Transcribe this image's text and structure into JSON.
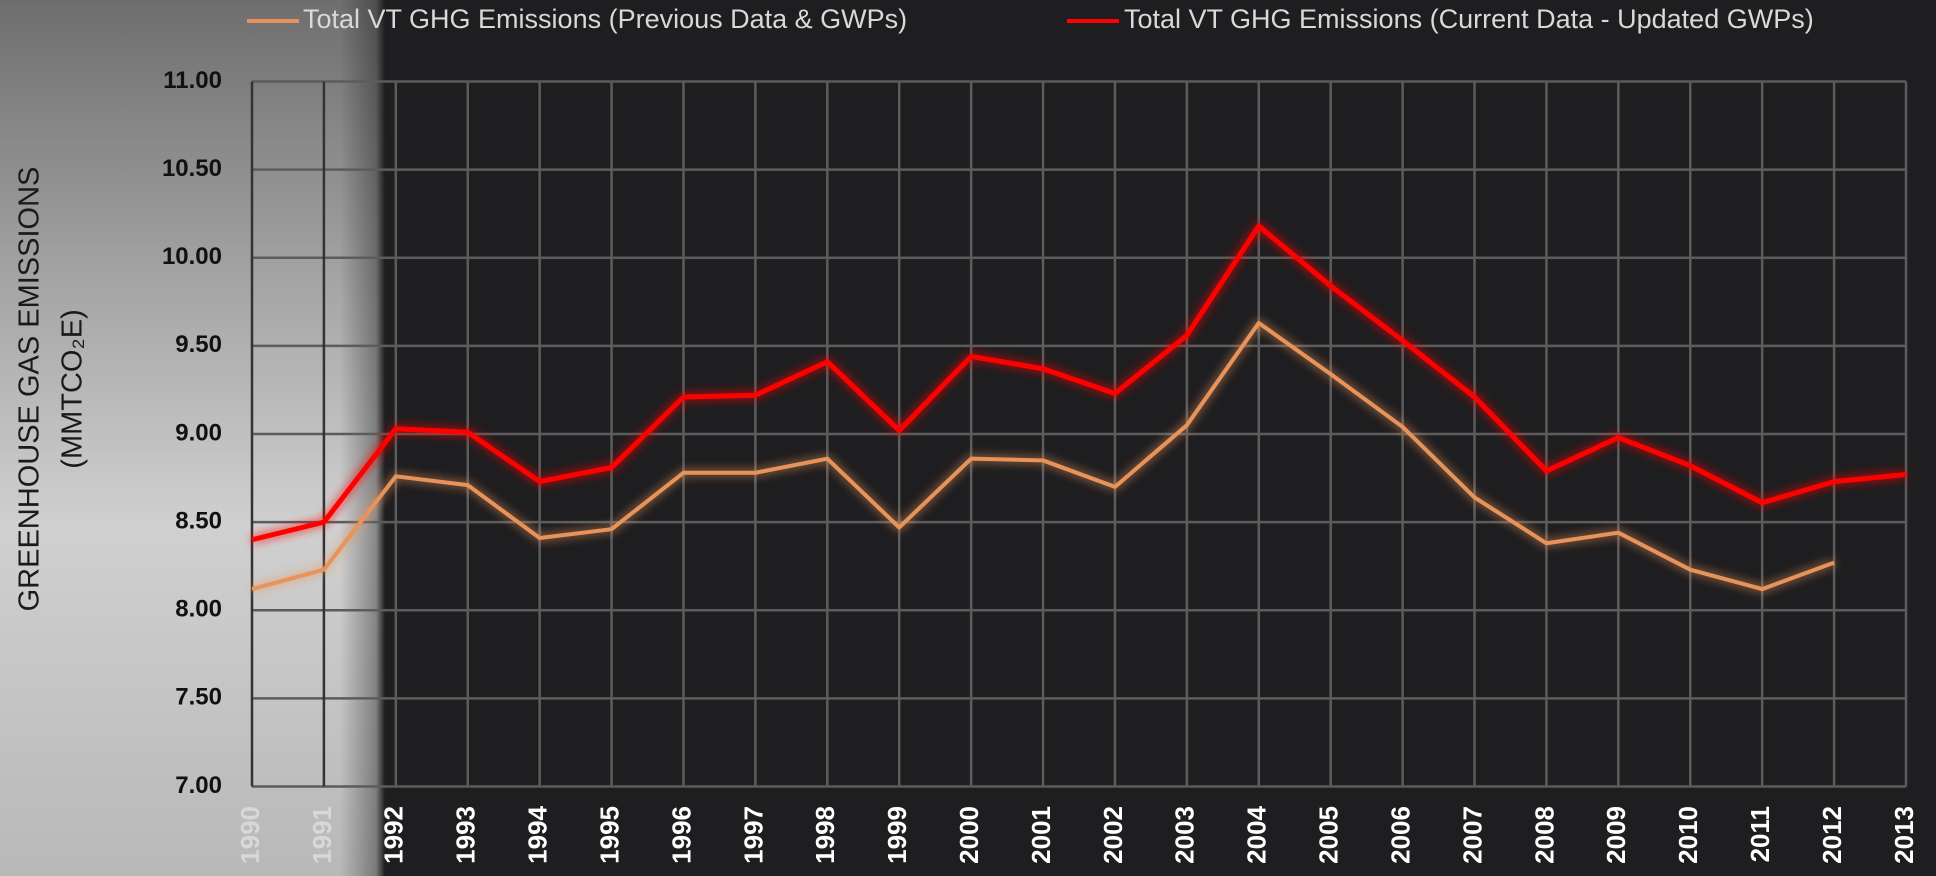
{
  "chart_data": {
    "type": "line",
    "y_label_lines": [
      "GREENHOUSE GAS EMISSIONS",
      "(MMTCO₂E)"
    ],
    "categories": [
      "1990",
      "1991",
      "1992",
      "1993",
      "1994",
      "1995",
      "1996",
      "1997",
      "1998",
      "1999",
      "2000",
      "2001",
      "2002",
      "2003",
      "2004",
      "2005",
      "2006",
      "2007",
      "2008",
      "2009",
      "2010",
      "2011",
      "2012",
      "2013"
    ],
    "series": [
      {
        "name": "Total VT GHG Emissions (Previous Data & GWPs)",
        "color": "#e8935a",
        "values": [
          8.12,
          8.23,
          8.76,
          8.71,
          8.41,
          8.46,
          8.78,
          8.78,
          8.86,
          8.47,
          8.86,
          8.85,
          8.7,
          9.05,
          9.63,
          9.34,
          9.04,
          8.64,
          8.38,
          8.44,
          8.23,
          8.12,
          8.27,
          null
        ]
      },
      {
        "name": "Total VT GHG Emissions (Current Data - Updated GWPs)",
        "color": "#ff0000",
        "values": [
          8.4,
          8.5,
          9.03,
          9.01,
          8.73,
          8.81,
          9.21,
          9.22,
          9.41,
          9.02,
          9.44,
          9.37,
          9.23,
          9.56,
          10.18,
          9.84,
          9.53,
          9.21,
          8.79,
          8.98,
          8.82,
          8.61,
          8.73,
          8.77
        ]
      }
    ],
    "ylim": [
      7,
      11
    ],
    "yticks": [
      {
        "value": 7,
        "label": "7.00"
      },
      {
        "value": 7.5,
        "label": "7.50"
      },
      {
        "value": 8,
        "label": "8.00"
      },
      {
        "value": 8.5,
        "label": "8.50"
      },
      {
        "value": 9,
        "label": "9.00"
      },
      {
        "value": 9.5,
        "label": "9.50"
      },
      {
        "value": 10,
        "label": "10.00"
      },
      {
        "value": 10.5,
        "label": "10.50"
      },
      {
        "value": 11,
        "label": "11.00"
      }
    ],
    "grid": true,
    "legend": "top"
  }
}
